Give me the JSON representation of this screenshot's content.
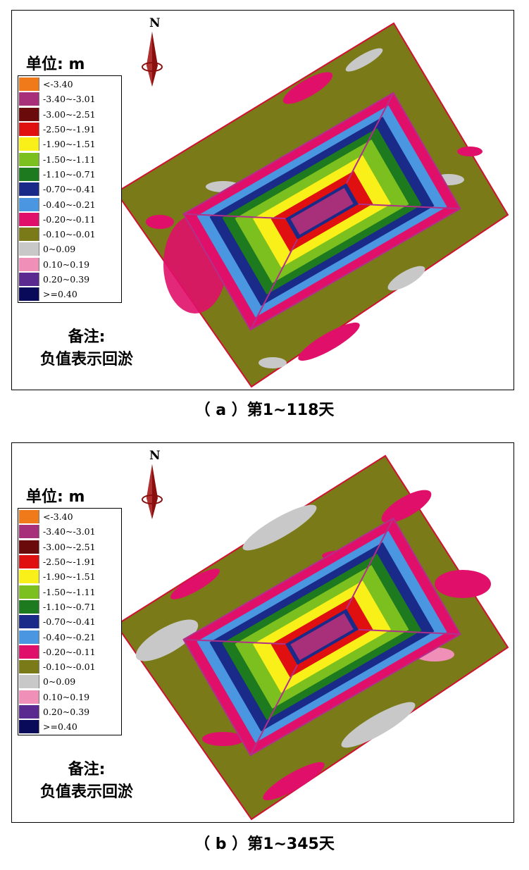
{
  "panels": [
    {
      "id": "a",
      "unit_label": "单位: m",
      "compass": "N",
      "note_line1": "备注:",
      "note_line2": "负值表示回淤",
      "caption": "（ a ）第1~118天"
    },
    {
      "id": "b",
      "unit_label": "单位: m",
      "compass": "N",
      "note_line1": "备注:",
      "note_line2": "负值表示回淤",
      "caption": "（ b ）第1~345天"
    }
  ],
  "legend": [
    {
      "label": "<-3.40",
      "color": "#f07a1a"
    },
    {
      "label": "-3.40~-3.01",
      "color": "#a8307a"
    },
    {
      "label": "-3.00~-2.51",
      "color": "#6a0a0a"
    },
    {
      "label": "-2.50~-1.91",
      "color": "#e01010"
    },
    {
      "label": "-1.90~-1.51",
      "color": "#f8f018"
    },
    {
      "label": "-1.50~-1.11",
      "color": "#7cc020"
    },
    {
      "label": "-1.10~-0.71",
      "color": "#1e7a1e"
    },
    {
      "label": "-0.70~-0.41",
      "color": "#1a2a88"
    },
    {
      "label": "-0.40~-0.21",
      "color": "#4a96e0"
    },
    {
      "label": "-0.20~-0.11",
      "color": "#e0106a"
    },
    {
      "label": "-0.10~-0.01",
      "color": "#7a7a18"
    },
    {
      "label": "0~0.09",
      "color": "#c8c8c8"
    },
    {
      "label": "0.10~0.19",
      "color": "#f090b8"
    },
    {
      "label": "0.20~0.39",
      "color": "#5a2a90"
    },
    {
      "label": ">=0.40",
      "color": "#0a0a5a"
    }
  ]
}
